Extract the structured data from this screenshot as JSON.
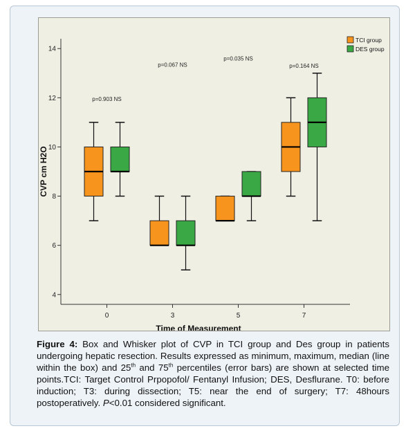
{
  "chart_data": {
    "type": "box",
    "xlabel": "Time of Measurement",
    "ylabel": "CVP cm H2O",
    "categories": [
      "0",
      "3",
      "5",
      "7"
    ],
    "ylim": [
      3.6,
      14.4
    ],
    "yticks": [
      4,
      6,
      8,
      10,
      12,
      14
    ],
    "grid": false,
    "legend_position": "top-right",
    "series": [
      {
        "name": "TCI group",
        "color": "#f7941d",
        "boxes": [
          {
            "min": 7,
            "q1": 8,
            "median": 9,
            "q3": 10,
            "max": 11
          },
          {
            "min": 6,
            "q1": 6,
            "median": 6,
            "q3": 7,
            "max": 8
          },
          {
            "min": 7,
            "q1": 7,
            "median": 7,
            "q3": 8,
            "max": 8
          },
          {
            "min": 8,
            "q1": 9,
            "median": 10,
            "q3": 11,
            "max": 12
          }
        ]
      },
      {
        "name": "DES group",
        "color": "#3aa845",
        "boxes": [
          {
            "min": 8,
            "q1": 9,
            "median": 9,
            "q3": 10,
            "max": 11
          },
          {
            "min": 5,
            "q1": 6,
            "median": 6,
            "q3": 7,
            "max": 8
          },
          {
            "min": 7,
            "q1": 8,
            "median": 8,
            "q3": 9,
            "max": 9
          },
          {
            "min": 7,
            "q1": 10,
            "median": 11,
            "q3": 12,
            "max": 13
          }
        ]
      }
    ],
    "annotations": [
      {
        "text": "p=0.903 NS",
        "category": "0",
        "y": 11.95
      },
      {
        "text": "p=0.067 NS",
        "category": "3",
        "y": 13.35
      },
      {
        "text": "p=0.035 NS",
        "category": "5",
        "y": 13.6
      },
      {
        "text": "p=0.164 NS",
        "category": "7",
        "y": 13.3
      }
    ]
  },
  "caption": {
    "label": "Figure 4:",
    "text_a": " Box and Whisker plot of CVP in TCI group and Des group in patients undergoing hepatic resection. Results expressed as minimum, maximum, median (line within the box) and 25",
    "sup1": "th",
    "text_b": " and 75",
    "sup2": "th",
    "text_c": " percentiles (error bars) are shown at selected time points.TCI: Target Control Prpopofol/ Fentanyl Infusion; DES, Desflurane. T0: before induction; T3: during dissection; T5: near the end of surgery; T7: 48hours postoperatively. ",
    "p_italic": "P",
    "text_d": "<0.01 considered significant."
  }
}
